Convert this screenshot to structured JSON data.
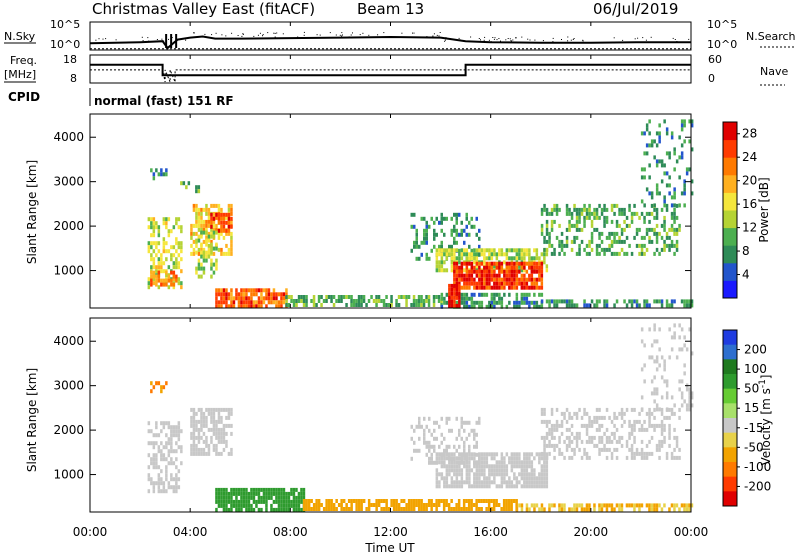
{
  "header": {
    "title": "Christmas Valley East (fitACF)",
    "beam": "Beam 13",
    "date": "06/Jul/2019"
  },
  "summary_panels": {
    "nsky_label": "N.Sky",
    "nsky_ticks": [
      "10^5",
      "10^0"
    ],
    "nsearch_label": "N.Search",
    "freq_label_line1": "Freq.",
    "freq_label_line2": "[MHz]",
    "freq_ticks": [
      "18",
      "8"
    ],
    "nave_label": "Nave",
    "nave_ticks": [
      "60",
      "0"
    ],
    "cpid_label": "CPID",
    "cpid_text": "normal (fast) 151 RF"
  },
  "x_axis": {
    "label": "Time UT",
    "ticks": [
      "00:00",
      "04:00",
      "08:00",
      "12:00",
      "16:00",
      "20:00",
      "00:00"
    ]
  },
  "colors": {
    "power_scale": [
      "#1a1aff",
      "#2255cc",
      "#2e8b57",
      "#4caf50",
      "#b5d334",
      "#f5e63c",
      "#ffb020",
      "#ff7a00",
      "#ff3b00",
      "#e00000"
    ],
    "velocity_scale": [
      "#1f3ce0",
      "#2e6fcf",
      "#1f7a1f",
      "#2e9b2e",
      "#66cc33",
      "#a8e06a",
      "#c8c8c8",
      "#e8d24a",
      "#f2a300",
      "#ff7a00",
      "#ff3b00",
      "#e00000"
    ]
  },
  "chart_data": [
    {
      "type": "line",
      "panel": "N.Sky / N.Search",
      "x_range_hours": [
        0,
        24
      ],
      "ylim_log10": [
        0,
        5
      ],
      "y_ticks": [
        "10^5",
        "10^0"
      ],
      "series": [
        {
          "name": "N.Sky",
          "x": [
            0,
            1,
            2,
            2.9,
            3.1,
            3.5,
            4.0,
            4.5,
            5,
            6,
            8,
            10,
            12,
            14,
            15,
            16,
            18,
            20,
            22,
            24
          ],
          "y_log10": [
            1.1,
            1.2,
            1.3,
            1.5,
            0.2,
            1.8,
            2.2,
            2.4,
            2.0,
            2.0,
            2.1,
            2.2,
            2.3,
            2.2,
            1.5,
            1.3,
            1.2,
            1.2,
            1.3,
            1.3
          ]
        },
        {
          "name": "N.Search",
          "x": [
            0,
            24
          ],
          "y_log10": [
            0.05,
            0.05
          ]
        }
      ]
    },
    {
      "type": "line",
      "panel": "Freq / Nave",
      "x_range_hours": [
        0,
        24
      ],
      "freq_ylim_mhz": [
        8,
        18
      ],
      "nave_ylim": [
        0,
        60
      ],
      "series": [
        {
          "name": "Freq.",
          "x": [
            0,
            2.9,
            2.9,
            15.0,
            15.0,
            24
          ],
          "y": [
            14.6,
            14.6,
            10.6,
            10.6,
            14.6,
            14.6
          ]
        },
        {
          "name": "Nave",
          "x": [
            0,
            2.9,
            2.9,
            3.0,
            3.0,
            3.2,
            3.2,
            3.4,
            3.4,
            4.0,
            4.0,
            24
          ],
          "y": [
            28,
            28,
            28,
            0,
            28,
            0,
            28,
            0,
            28,
            28,
            28,
            28
          ]
        }
      ]
    },
    {
      "type": "heatmap",
      "panel": "Power",
      "ylabel": "Slant Range [km]",
      "xlabel": "Time UT",
      "ylim_km": [
        180,
        4500
      ],
      "y_ticks": [
        1000,
        2000,
        3000,
        4000
      ],
      "colorbar_label": "Power [dB]",
      "colorbar_ticks": [
        4,
        8,
        12,
        16,
        20,
        24,
        28
      ],
      "colorbar_range": [
        0,
        30
      ],
      "regions": [
        {
          "t0": 2.4,
          "t1": 3.0,
          "r0": 3000,
          "r1": 3300,
          "value": 8,
          "density": 0.3
        },
        {
          "t0": 3.6,
          "t1": 4.4,
          "r0": 2800,
          "r1": 3100,
          "value": 10,
          "density": 0.4
        },
        {
          "t0": 4.0,
          "t1": 5.6,
          "r0": 1400,
          "r1": 2500,
          "value": 18,
          "density": 0.6
        },
        {
          "t0": 4.8,
          "t1": 5.6,
          "r0": 1900,
          "r1": 2300,
          "value": 25,
          "density": 0.6
        },
        {
          "t0": 2.3,
          "t1": 3.6,
          "r0": 600,
          "r1": 2200,
          "value": 15,
          "density": 0.5
        },
        {
          "t0": 2.4,
          "t1": 3.4,
          "r0": 700,
          "r1": 1000,
          "value": 22,
          "density": 0.6
        },
        {
          "t0": 4.2,
          "t1": 5.0,
          "r0": 900,
          "r1": 1900,
          "value": 14,
          "density": 0.45
        },
        {
          "t0": 5.0,
          "t1": 7.8,
          "r0": 200,
          "r1": 600,
          "value": 24,
          "density": 0.8
        },
        {
          "t0": 7.8,
          "t1": 14.0,
          "r0": 200,
          "r1": 450,
          "value": 10,
          "density": 0.6
        },
        {
          "t0": 14.0,
          "t1": 18.0,
          "r0": 200,
          "r1": 500,
          "value": 8,
          "density": 0.6
        },
        {
          "t0": 18.0,
          "t1": 24,
          "r0": 180,
          "r1": 350,
          "value": 8,
          "density": 0.6
        },
        {
          "t0": 12.8,
          "t1": 15.5,
          "r0": 1300,
          "r1": 2300,
          "value": 8,
          "density": 0.35
        },
        {
          "t0": 13.8,
          "t1": 18.2,
          "r0": 1000,
          "r1": 1500,
          "value": 14,
          "density": 0.7
        },
        {
          "t0": 14.5,
          "t1": 18.0,
          "r0": 600,
          "r1": 1200,
          "value": 26,
          "density": 0.9
        },
        {
          "t0": 14.3,
          "t1": 14.7,
          "r0": 200,
          "r1": 700,
          "value": 28,
          "density": 0.9
        },
        {
          "t0": 18.0,
          "t1": 23.5,
          "r0": 1400,
          "r1": 2500,
          "value": 10,
          "density": 0.4
        },
        {
          "t0": 22.0,
          "t1": 24,
          "r0": 2500,
          "r1": 4400,
          "value": 8,
          "density": 0.2
        }
      ]
    },
    {
      "type": "heatmap",
      "panel": "Velocity",
      "ylabel": "Slant Range [km]",
      "xlabel": "Time UT",
      "ylim_km": [
        180,
        4500
      ],
      "y_ticks": [
        1000,
        2000,
        3000,
        4000
      ],
      "colorbar_label": "Velocity [m s^-1]",
      "colorbar_ticks": [
        200,
        100,
        50,
        15,
        -15,
        -50,
        -100,
        -200
      ],
      "regions": [
        {
          "t0": 2.4,
          "t1": 3.0,
          "r0": 2900,
          "r1": 3100,
          "value": -50,
          "density": 0.4
        },
        {
          "t0": 4.0,
          "t1": 5.6,
          "r0": 1500,
          "r1": 2500,
          "value": 0,
          "density": 0.6
        },
        {
          "t0": 2.3,
          "t1": 3.6,
          "r0": 600,
          "r1": 2200,
          "value": 0,
          "density": 0.5
        },
        {
          "t0": 5.0,
          "t1": 8.5,
          "r0": 200,
          "r1": 700,
          "value": 60,
          "density": 0.8
        },
        {
          "t0": 8.5,
          "t1": 17.0,
          "r0": 200,
          "r1": 450,
          "value": -40,
          "density": 0.7
        },
        {
          "t0": 17.0,
          "t1": 24,
          "r0": 180,
          "r1": 350,
          "value": -30,
          "density": 0.6
        },
        {
          "t0": 13.8,
          "t1": 18.2,
          "r0": 700,
          "r1": 1500,
          "value": 0,
          "density": 0.8
        },
        {
          "t0": 12.8,
          "t1": 15.5,
          "r0": 1300,
          "r1": 2300,
          "value": 0,
          "density": 0.35
        },
        {
          "t0": 18.0,
          "t1": 23.5,
          "r0": 1400,
          "r1": 2500,
          "value": 0,
          "density": 0.4
        },
        {
          "t0": 22.0,
          "t1": 24,
          "r0": 2500,
          "r1": 4400,
          "value": 0,
          "density": 0.2
        }
      ]
    }
  ]
}
